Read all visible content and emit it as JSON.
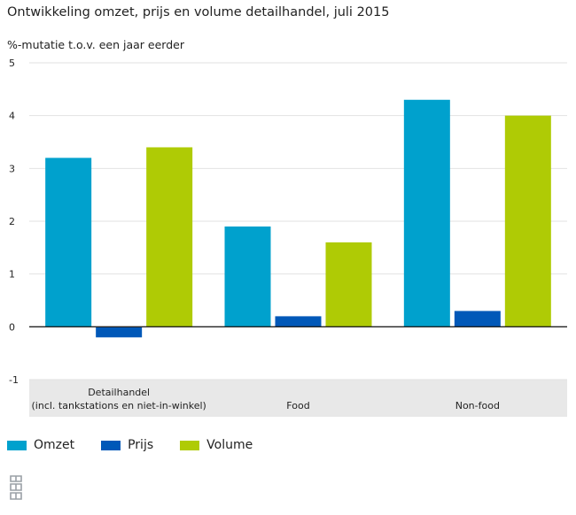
{
  "chart_data": {
    "type": "bar",
    "title": "Ontwikkeling omzet, prijs en volume detailhandel, juli 2015",
    "subtitle": "%-mutatie t.o.v. een jaar eerder",
    "categories": [
      [
        "Detailhandel",
        "(incl. tankstations en niet-in-winkel)"
      ],
      [
        "Food"
      ],
      [
        "Non-food"
      ]
    ],
    "series": [
      {
        "name": "Omzet",
        "color": "#00a1cd",
        "values": [
          3.2,
          1.9,
          4.3
        ]
      },
      {
        "name": "Prijs",
        "color": "#0058b8",
        "values": [
          -0.2,
          0.2,
          0.3
        ]
      },
      {
        "name": "Volume",
        "color": "#afcb05",
        "values": [
          3.4,
          1.6,
          4.0
        ]
      }
    ],
    "ylim": [
      -1,
      5
    ],
    "yticks": [
      5,
      4,
      3,
      2,
      1,
      0,
      -1
    ],
    "grid": true,
    "legend_position": "bottom-left"
  },
  "logo": {
    "name": "cbs-logo-icon"
  }
}
